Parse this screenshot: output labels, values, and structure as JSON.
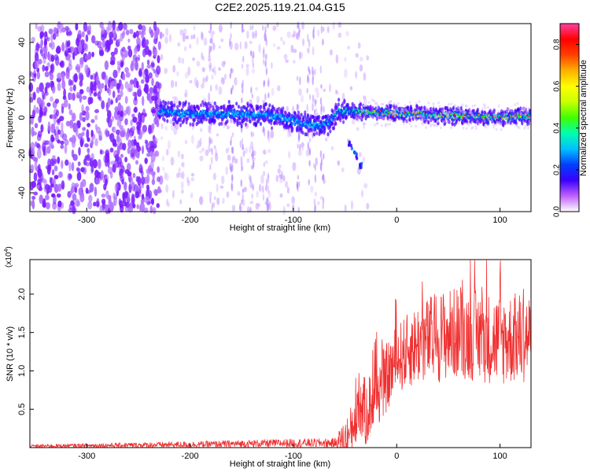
{
  "figure": {
    "title": "C2E2.2025.119.21.04.G15"
  },
  "chart_data": [
    {
      "type": "heatmap",
      "name": "spectrogram",
      "xlabel": "Height of straight line (km)",
      "ylabel": "Frequency (Hz)",
      "xlim": [
        -355,
        130
      ],
      "ylim": [
        -50,
        50
      ],
      "xticks": [
        -300,
        -200,
        -100,
        0,
        100
      ],
      "yticks": [
        -40,
        -20,
        0,
        20,
        40
      ],
      "colorbar": {
        "label": "Normalized spectral amplitude",
        "range": [
          0.0,
          0.9
        ],
        "ticks": [
          0.0,
          0.2,
          0.4,
          0.6,
          0.8
        ],
        "colors": [
          "#ffffff",
          "#c060ff",
          "#3b00ff",
          "#0040ff",
          "#00c0ff",
          "#00ffb0",
          "#40ff00",
          "#c8ff00",
          "#ffff00",
          "#ffb000",
          "#ff4000",
          "#ff0000",
          "#ff40a0"
        ]
      },
      "ridge": {
        "start_x": -230,
        "freq_center": [
          [
            -230,
            3
          ],
          [
            -200,
            2
          ],
          [
            -150,
            2
          ],
          [
            -120,
            1
          ],
          [
            -90,
            -3
          ],
          [
            -75,
            -5
          ],
          [
            -65,
            -2
          ],
          [
            -55,
            4
          ],
          [
            0,
            2
          ],
          [
            50,
            1
          ],
          [
            100,
            0
          ],
          [
            130,
            1
          ]
        ],
        "branch": [
          [
            -45,
            -15
          ],
          [
            -40,
            -20
          ],
          [
            -35,
            -26
          ]
        ]
      }
    },
    {
      "type": "line",
      "name": "snr",
      "xlabel": "Height of straight line (km)",
      "ylabel": "SNR (10 * v/v)",
      "y_multiplier": "(x10",
      "y_multiplier_exp": "4",
      "y_multiplier_close": ")",
      "xlim": [
        -355,
        130
      ],
      "ylim": [
        0,
        2.45
      ],
      "xticks": [
        -300,
        -200,
        -100,
        0,
        100
      ],
      "yticks": [
        0.5,
        1.0,
        1.5,
        2.0
      ],
      "ytick_labels": [
        "0.5",
        "1.0",
        "1.5",
        "2.0"
      ],
      "line_color": "#f03030",
      "envelope": [
        [
          -355,
          0.02
        ],
        [
          -200,
          0.04
        ],
        [
          -100,
          0.06
        ],
        [
          -60,
          0.06
        ],
        [
          -45,
          0.15
        ],
        [
          -38,
          0.6
        ],
        [
          -30,
          0.45
        ],
        [
          -20,
          0.7
        ],
        [
          -10,
          0.9
        ],
        [
          0,
          1.15
        ],
        [
          20,
          1.35
        ],
        [
          40,
          1.45
        ],
        [
          60,
          1.5
        ],
        [
          80,
          1.45
        ],
        [
          100,
          1.4
        ],
        [
          130,
          1.45
        ]
      ],
      "spread": [
        [
          -355,
          0.02
        ],
        [
          -60,
          0.06
        ],
        [
          -40,
          0.45
        ],
        [
          -20,
          0.45
        ],
        [
          0,
          0.45
        ],
        [
          40,
          0.6
        ],
        [
          130,
          0.6
        ]
      ]
    }
  ]
}
